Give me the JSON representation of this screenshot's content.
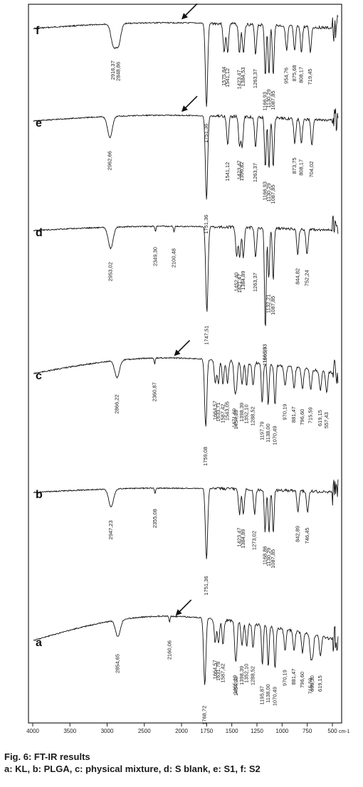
{
  "chart_data": {
    "type": "line",
    "title": "",
    "xlabel": "cm-1",
    "ylabel": "",
    "xlim": [
      4000,
      400
    ],
    "x_ticks": [
      4000,
      3500,
      3000,
      2500,
      2000,
      1750,
      1500,
      1250,
      1000,
      750,
      500
    ],
    "x_tick_labels": [
      "4000",
      "3500",
      "3000",
      "2500",
      "2000",
      "1750",
      "1500",
      "1250",
      "1000",
      "750",
      "500"
    ],
    "grid": false,
    "legend": "none",
    "series": [
      {
        "name": "f",
        "peaks": [
          {
            "x": 2916.37,
            "label": "2916,37"
          },
          {
            "x": 2848.86,
            "label": "2848,86"
          },
          {
            "x": 1751.36,
            "label": "1751,36"
          },
          {
            "x": 1575.84,
            "label": "1575,84"
          },
          {
            "x": 1541.12,
            "label": "1541,12"
          },
          {
            "x": 1423.47,
            "label": "1423,47"
          },
          {
            "x": 1384.53,
            "label": "1384,53"
          },
          {
            "x": 1263.37,
            "label": "1263,37"
          },
          {
            "x": 1166.93,
            "label": "1166,93"
          },
          {
            "x": 1130.29,
            "label": "1130,29"
          },
          {
            "x": 1087.85,
            "label": "1087,85"
          },
          {
            "x": 954.76,
            "label": "954,76"
          },
          {
            "x": 875.68,
            "label": "875,68"
          },
          {
            "x": 808.17,
            "label": "808,17"
          },
          {
            "x": 719.45,
            "label": "719,45"
          }
        ],
        "arrow_at": 2000
      },
      {
        "name": "e",
        "peaks": [
          {
            "x": 2962.66,
            "label": "2962,66"
          },
          {
            "x": 1751.36,
            "label": "1751,36"
          },
          {
            "x": 1541.12,
            "label": "1541,12"
          },
          {
            "x": 1423.47,
            "label": "1423,47"
          },
          {
            "x": 1396.82,
            "label": "1396,82"
          },
          {
            "x": 1263.37,
            "label": "1263,37"
          },
          {
            "x": 1166.93,
            "label": "1166,93"
          },
          {
            "x": 1130.29,
            "label": "1130,29"
          },
          {
            "x": 1087.85,
            "label": "1087,85"
          },
          {
            "x": 873.75,
            "label": "873,75"
          },
          {
            "x": 808.17,
            "label": "808,17"
          },
          {
            "x": 704.02,
            "label": "704,02"
          }
        ],
        "arrow_at": 2000
      },
      {
        "name": "d",
        "peaks": [
          {
            "x": 2953.02,
            "label": "2953,02"
          },
          {
            "x": 2349.3,
            "label": "2349,30"
          },
          {
            "x": 2100.48,
            "label": "2100,48"
          },
          {
            "x": 1747.51,
            "label": "1747,51"
          },
          {
            "x": 1452.4,
            "label": "1452,40"
          },
          {
            "x": 1421.47,
            "label": "1421,47"
          },
          {
            "x": 1384.89,
            "label": "1384,89"
          },
          {
            "x": 1263.37,
            "label": "1263,37"
          },
          {
            "x": 1166.93,
            "label": "1166,93"
          },
          {
            "x": 1166.93,
            "label": "1166,93"
          },
          {
            "x": 1132.21,
            "label": "1132,21"
          },
          {
            "x": 1087.85,
            "label": "1087,85"
          },
          {
            "x": 844.82,
            "label": "844,82"
          },
          {
            "x": 752.24,
            "label": "752,24"
          }
        ]
      },
      {
        "name": "c",
        "peaks": [
          {
            "x": 2866.22,
            "label": "2866,22"
          },
          {
            "x": 2360.87,
            "label": "2360,87"
          },
          {
            "x": 1759.08,
            "label": "1759,08"
          },
          {
            "x": 1664.57,
            "label": "1664,57"
          },
          {
            "x": 1633.71,
            "label": "1633,71"
          },
          {
            "x": 1587.42,
            "label": "1587,42"
          },
          {
            "x": 1543.05,
            "label": "1543,05"
          },
          {
            "x": 1471.69,
            "label": "1471,69"
          },
          {
            "x": 1454.33,
            "label": "1454,33"
          },
          {
            "x": 1398.39,
            "label": "1398,39"
          },
          {
            "x": 1352.1,
            "label": "1352,10"
          },
          {
            "x": 1288.52,
            "label": "1288,52"
          },
          {
            "x": 1197.79,
            "label": "1197,79"
          },
          {
            "x": 1138,
            "label": "1138,00"
          },
          {
            "x": 1070.49,
            "label": "1070,49"
          },
          {
            "x": 970.19,
            "label": "970,19"
          },
          {
            "x": 881.47,
            "label": "881,47"
          },
          {
            "x": 796.6,
            "label": "796,60"
          },
          {
            "x": 715.59,
            "label": "715,59"
          },
          {
            "x": 619.15,
            "label": "619,15"
          },
          {
            "x": 557.43,
            "label": "557,43"
          }
        ],
        "arrow_at": 2100
      },
      {
        "name": "b",
        "peaks": [
          {
            "x": 2947.23,
            "label": "2947,23"
          },
          {
            "x": 2355.08,
            "label": "2355,08"
          },
          {
            "x": 1751.36,
            "label": "1751,36"
          },
          {
            "x": 1423.47,
            "label": "1423,47"
          },
          {
            "x": 1384.89,
            "label": "1384,89"
          },
          {
            "x": 1273.02,
            "label": "1273,02"
          },
          {
            "x": 1168.86,
            "label": "1168,86"
          },
          {
            "x": 1130.29,
            "label": "1130,29"
          },
          {
            "x": 1087.85,
            "label": "1087,85"
          },
          {
            "x": 842.89,
            "label": "842,89"
          },
          {
            "x": 746.45,
            "label": "746,45"
          }
        ]
      },
      {
        "name": "a",
        "peaks": [
          {
            "x": 2854.65,
            "label": "2854,65"
          },
          {
            "x": 2160.06,
            "label": "2160,06"
          },
          {
            "x": 1768.72,
            "label": "1768,72"
          },
          {
            "x": 1664.57,
            "label": "1664,57"
          },
          {
            "x": 1631.78,
            "label": "1631,78"
          },
          {
            "x": 1587.42,
            "label": "1587,42"
          },
          {
            "x": 1465.19,
            "label": "1465,19"
          },
          {
            "x": 1454.33,
            "label": "1454,33"
          },
          {
            "x": 1398.39,
            "label": "1398,39"
          },
          {
            "x": 1352.1,
            "label": "1352,10"
          },
          {
            "x": 1288.52,
            "label": "1288,52"
          },
          {
            "x": 1195.87,
            "label": "1195,87"
          },
          {
            "x": 1138,
            "label": "1138,00"
          },
          {
            "x": 1070.49,
            "label": "1070,49"
          },
          {
            "x": 970.19,
            "label": "970,19"
          },
          {
            "x": 881.47,
            "label": "881,47"
          },
          {
            "x": 796.6,
            "label": "796,60"
          },
          {
            "x": 715.59,
            "label": "715,59"
          },
          {
            "x": 696.3,
            "label": "696,30"
          },
          {
            "x": 619.15,
            "label": "619,15"
          }
        ],
        "arrow_at": 2080
      }
    ]
  },
  "caption": {
    "line1": "Fig. 6: FT-IR results",
    "line2": "a: KL, b: PLGA, c: physical mixture, d: S blank, e: S1, f: S2"
  }
}
